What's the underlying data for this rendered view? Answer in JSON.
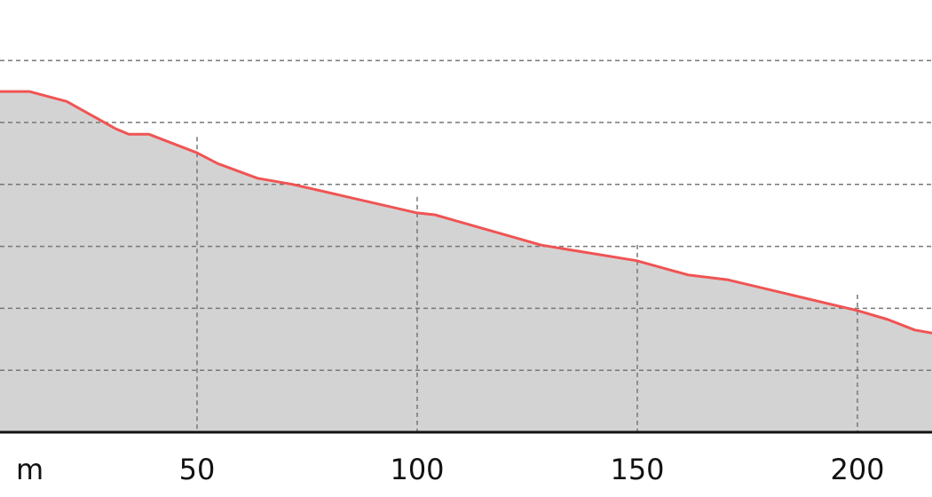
{
  "chart_data": {
    "type": "area",
    "title": "",
    "xlabel": "",
    "ylabel": "",
    "x_unit_label": "m",
    "xlim": [
      5.2,
      217.3
    ],
    "ylim": [
      0,
      7
    ],
    "x_ticks": [
      50,
      100,
      150,
      200
    ],
    "x_tick_labels": [
      "50",
      "100",
      "150",
      "200"
    ],
    "y_gridlines": [
      1,
      2,
      3,
      4,
      5,
      6
    ],
    "grid": true,
    "series": [
      {
        "x": [
          5.2,
          11.9,
          20.4,
          31.5,
          34.5,
          39.1,
          50,
          54.6,
          63.7,
          71.8,
          100,
          104,
          128.2,
          149.8,
          161.5,
          170.6,
          200.2,
          206.9,
          213,
          217.3
        ],
        "y": [
          5.5,
          5.5,
          5.34,
          4.9,
          4.81,
          4.81,
          4.51,
          4.34,
          4.1,
          4.0,
          3.54,
          3.51,
          3.02,
          2.77,
          2.54,
          2.46,
          1.96,
          1.82,
          1.65,
          1.6
        ]
      }
    ],
    "colors": {
      "line": "#f05454",
      "fill": "#d3d3d3",
      "grid": "#777777",
      "axis": "#111111"
    }
  }
}
